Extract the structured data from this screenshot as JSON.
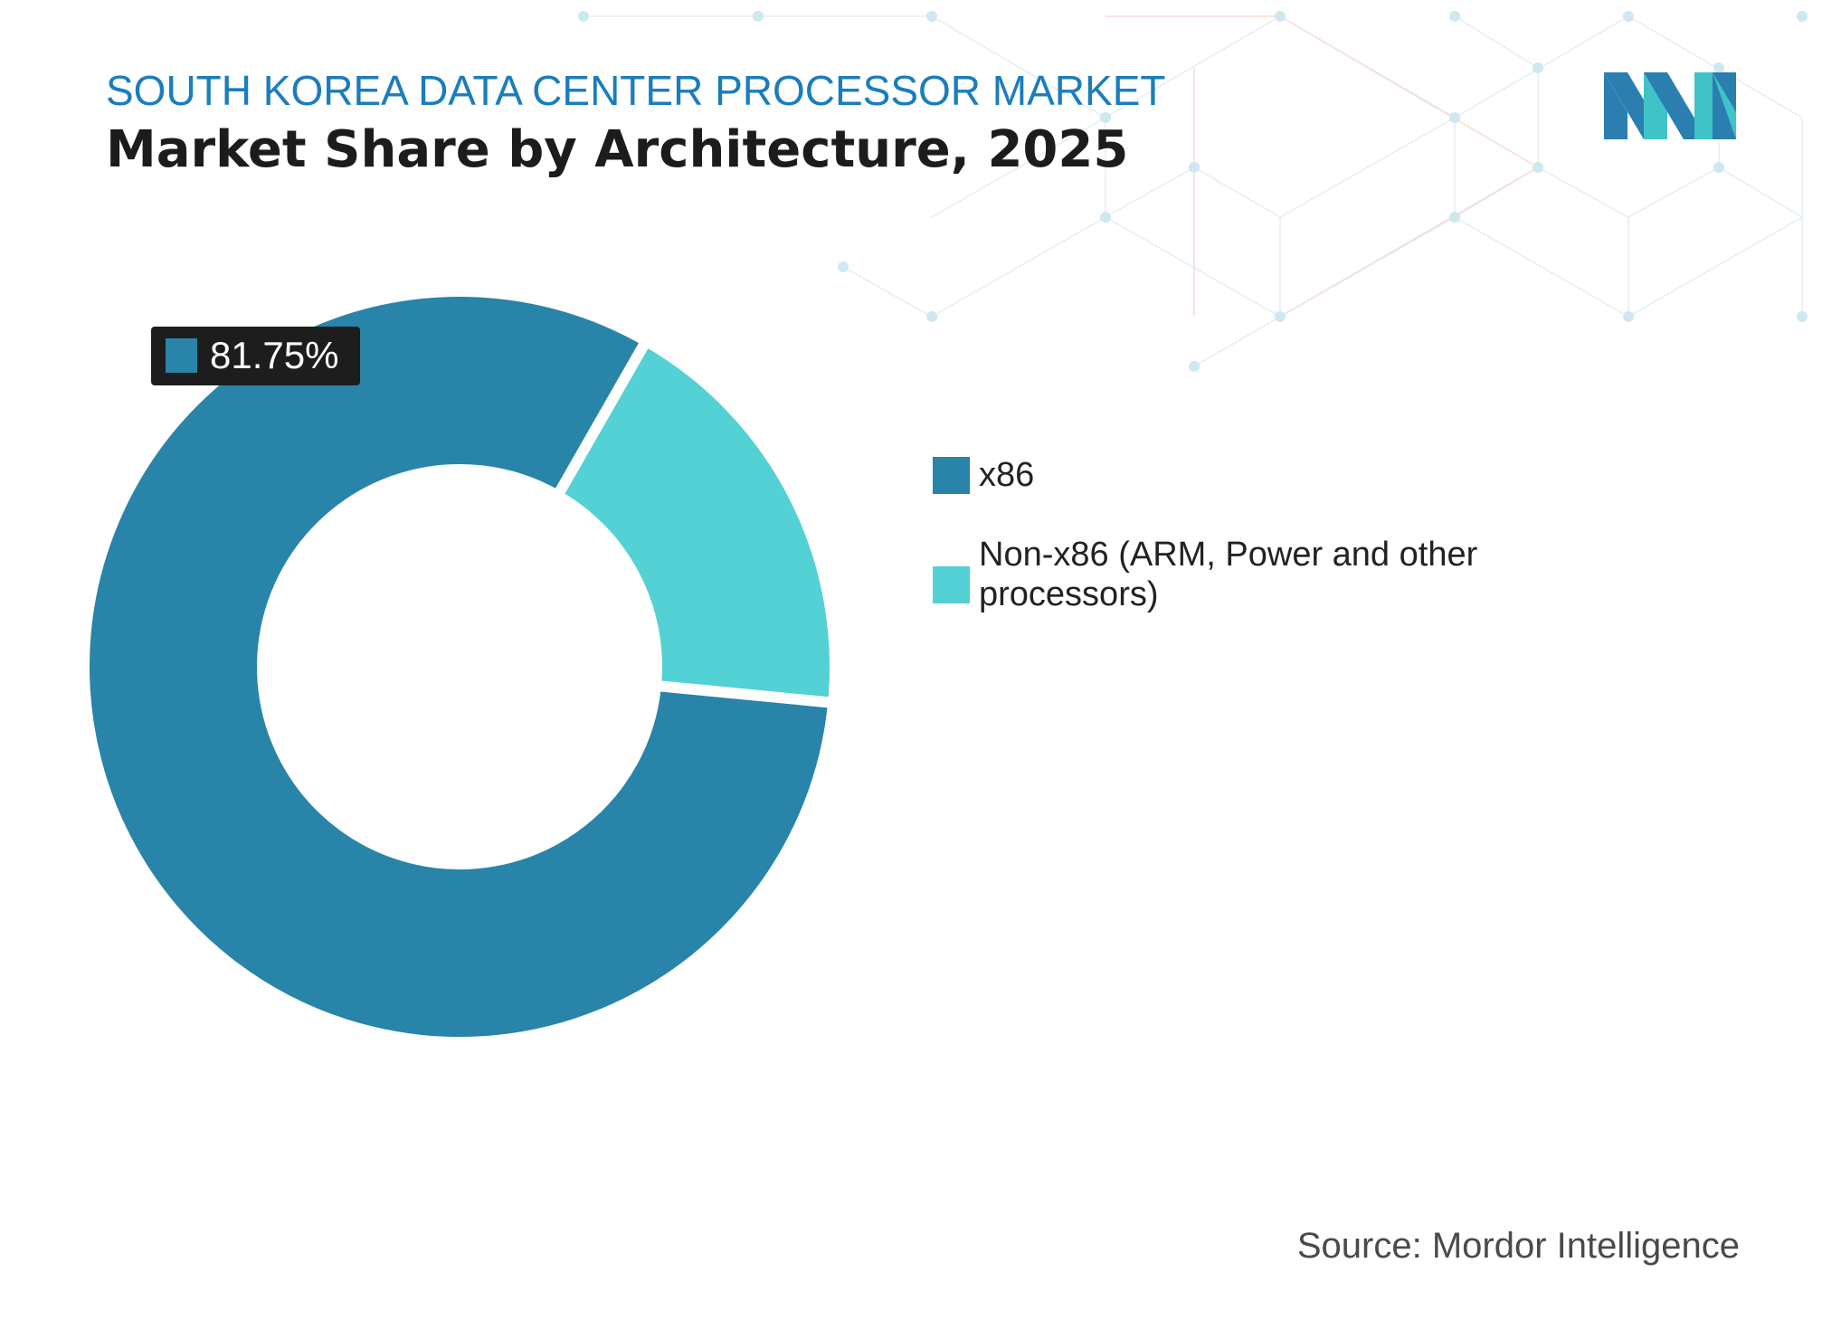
{
  "header": {
    "subtitle": "SOUTH KOREA DATA CENTER PROCESSOR MARKET",
    "title": "Market Share by Architecture, 2025"
  },
  "logo": {
    "icon": "mordor-intelligence-logo",
    "colors": [
      "#2a7eb0",
      "#3fc3c7"
    ]
  },
  "chart_data": {
    "type": "pie",
    "variant": "donut",
    "series": [
      {
        "name": "x86",
        "value": 81.75,
        "color": "#2884a8"
      },
      {
        "name": "Non-x86 (ARM, Power and other processors)",
        "value": 18.25,
        "color": "#53d1d4"
      }
    ],
    "data_labels": [
      {
        "series": "x86",
        "text": "81.75%"
      }
    ],
    "legend_position": "right"
  },
  "legend": {
    "items": [
      {
        "label": "x86",
        "color": "#2884a8"
      },
      {
        "label": "Non-x86 (ARM, Power and other processors)",
        "color": "#53d1d4"
      }
    ]
  },
  "footer": {
    "source": "Source: Mordor Intelligence"
  }
}
